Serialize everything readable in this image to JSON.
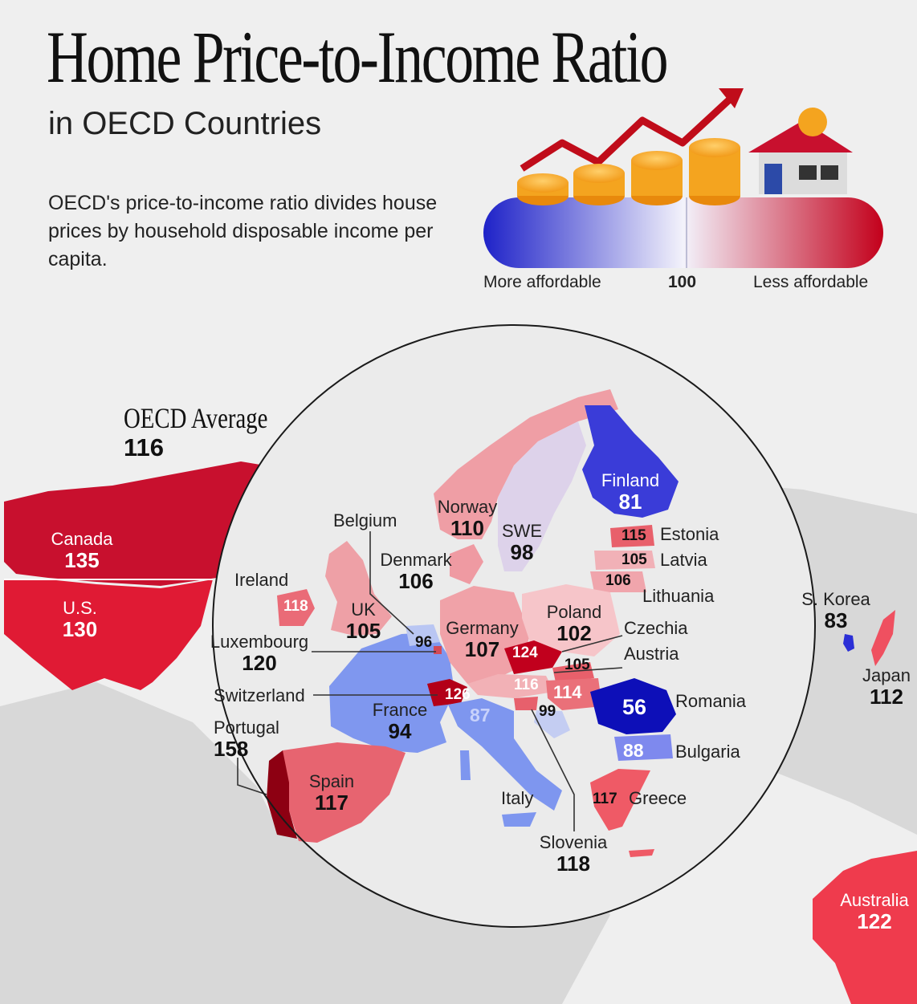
{
  "header": {
    "title": "Home Price-to-Income Ratio",
    "subtitle": "in OECD Countries",
    "description": "OECD's price-to-income ratio divides house prices by household disposable income per capita."
  },
  "legend": {
    "left_label": "More affordable",
    "mid_label": "100",
    "right_label": "Less affordable",
    "colors": {
      "affordable": "#1f1fd1",
      "neutral": "#f4f4ff",
      "unaffordable": "#c4001a"
    }
  },
  "oecd_average": {
    "label": "OECD Average",
    "value": "116"
  },
  "countries": {
    "canada": {
      "name": "Canada",
      "value": "135"
    },
    "us": {
      "name": "U.S.",
      "value": "130"
    },
    "ireland": {
      "name": "Ireland",
      "value": "118"
    },
    "uk": {
      "name": "UK",
      "value": "105"
    },
    "belgium": {
      "name": "Belgium",
      "value": "96"
    },
    "luxembourg": {
      "name": "Luxembourg",
      "value": "120"
    },
    "switzerland": {
      "name": "Switzerland",
      "value": "126"
    },
    "portugal": {
      "name": "Portugal",
      "value": "158"
    },
    "spain": {
      "name": "Spain",
      "value": "117"
    },
    "france": {
      "name": "France",
      "value": "94"
    },
    "norway": {
      "name": "Norway",
      "value": "110"
    },
    "sweden": {
      "name": "SWE",
      "value": "98"
    },
    "finland": {
      "name": "Finland",
      "value": "81"
    },
    "denmark": {
      "name": "Denmark",
      "value": "106"
    },
    "germany": {
      "name": "Germany",
      "value": "107"
    },
    "poland": {
      "name": "Poland",
      "value": "102"
    },
    "czechia": {
      "name": "Czechia",
      "value": "124"
    },
    "austria": {
      "name": "Austria",
      "value": "105"
    },
    "estonia": {
      "name": "Estonia",
      "value": "115"
    },
    "latvia": {
      "name": "Latvia",
      "value": "105"
    },
    "lithuania": {
      "name": "Lithuania",
      "value": "106"
    },
    "romania": {
      "name": "Romania",
      "value": "56"
    },
    "bulgaria": {
      "name": "Bulgaria",
      "value": "88"
    },
    "italy": {
      "name": "Italy",
      "value": "87"
    },
    "slovenia": {
      "name": "Slovenia",
      "value": "118"
    },
    "greece": {
      "name": "Greece",
      "value": "117"
    },
    "south_korea": {
      "name": "S. Korea",
      "value": "83"
    },
    "japan": {
      "name": "Japan",
      "value": "112"
    },
    "australia": {
      "name": "Australia",
      "value": "122"
    }
  },
  "unlabeled_values": {
    "slovakia": "116",
    "hungary": "114",
    "croatia": "99"
  }
}
